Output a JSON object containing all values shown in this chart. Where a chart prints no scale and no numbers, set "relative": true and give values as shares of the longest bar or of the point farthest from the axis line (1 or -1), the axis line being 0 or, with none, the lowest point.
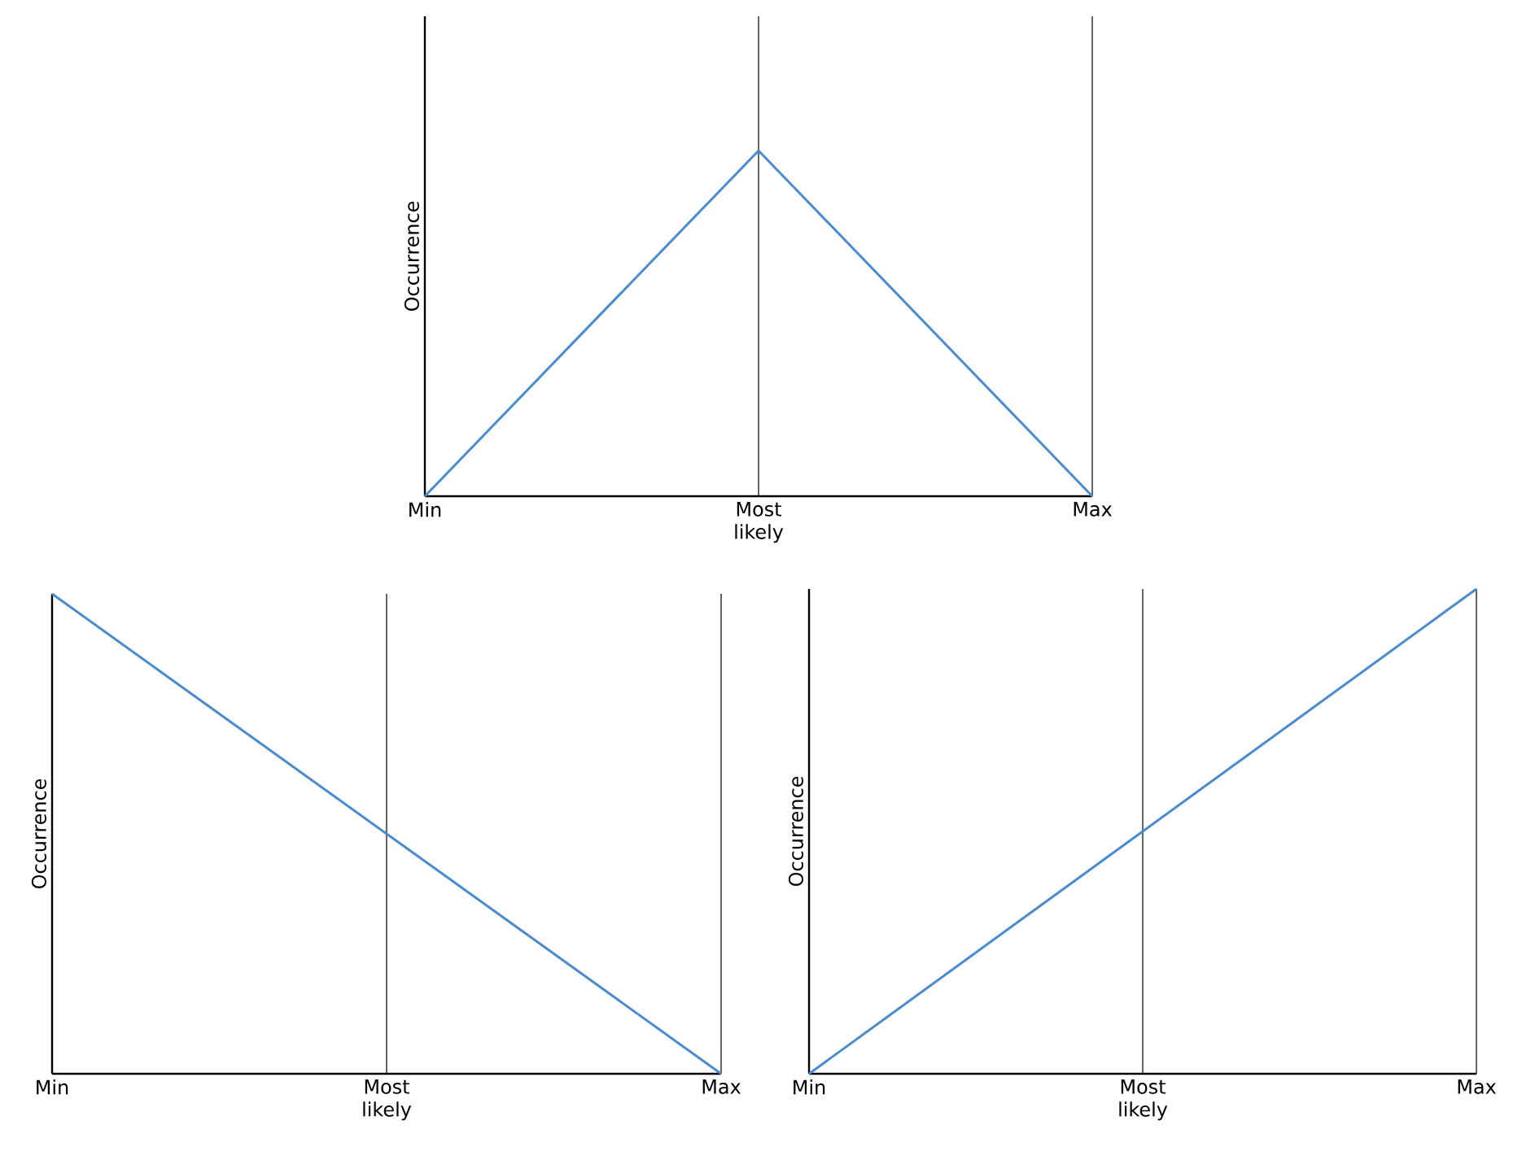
{
  "chart_data": [
    {
      "type": "line",
      "categories": [
        "Min",
        "Most likely",
        "Max"
      ],
      "values": [
        0,
        1,
        0
      ],
      "color": "#4a8bd0",
      "relative": true,
      "ylabel": "Occurrence",
      "grid": "x",
      "tick_labels": "x"
    },
    {
      "type": "line",
      "categories": [
        "Min",
        "Most likely",
        "Max"
      ],
      "values": [
        1,
        0.5,
        0
      ],
      "color": "#4a8bd0",
      "relative": true,
      "ylabel": "Occurrence",
      "grid": "x",
      "tick_labels": "x"
    },
    {
      "type": "line",
      "categories": [
        "Min",
        "Most likely",
        "Max"
      ],
      "values": [
        0,
        0.5,
        1
      ],
      "color": "#4a8bd0",
      "relative": true,
      "ylabel": "Occurrence",
      "grid": "x",
      "tick_labels": "x"
    }
  ]
}
